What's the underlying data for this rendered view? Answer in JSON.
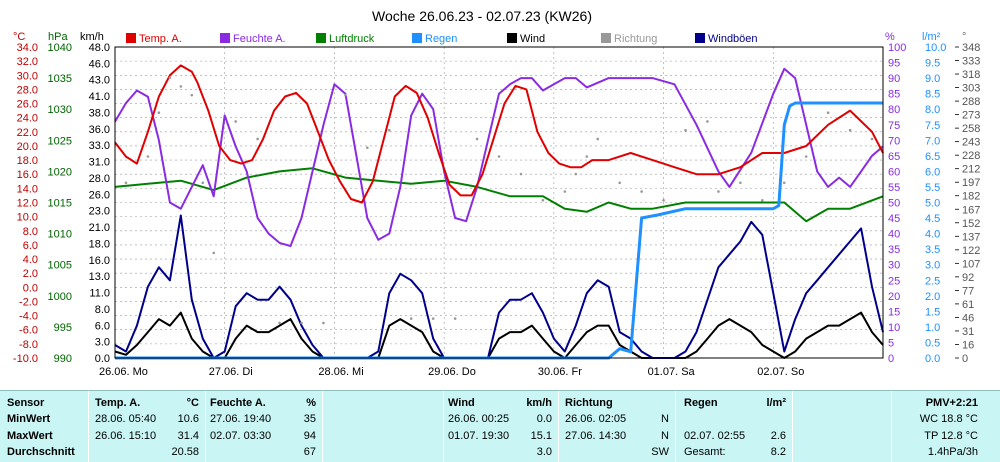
{
  "title": "Woche 26.06.23 - 02.07.23 (KW26)",
  "colors": {
    "temp": "#e00000",
    "humidity": "#8a2be2",
    "pressure": "#008000",
    "rain": "#1e90ff",
    "wind": "#000000",
    "direction": "#999999",
    "gust": "#00008b",
    "axis_temp": "#c00000",
    "table_bg": "#c9f5f5"
  },
  "axes": {
    "temp_unit": "°C",
    "pressure_unit": "hPa",
    "wind_unit": "km/h",
    "humidity_unit": "%",
    "rain_unit": "l/m²",
    "direction_unit": "°"
  },
  "legend": [
    {
      "label": "Temp. A.",
      "color": "#e00000"
    },
    {
      "label": "Feuchte A.",
      "color": "#8a2be2"
    },
    {
      "label": "Luftdruck",
      "color": "#008000"
    },
    {
      "label": "Regen",
      "color": "#1e90ff"
    },
    {
      "label": "Wind",
      "color": "#000000"
    },
    {
      "label": "Richtung",
      "color": "#999999"
    },
    {
      "label": "Windböen",
      "color": "#00008b"
    }
  ],
  "chart_data": {
    "type": "line",
    "title": "Woche 26.06.23 - 02.07.23 (KW26)",
    "x_labels": [
      "26.06. Mo",
      "27.06. Di",
      "28.06. Mi",
      "29.06. Do",
      "30.06. Fr",
      "01.07. Sa",
      "02.07. So"
    ],
    "x_range_days": [
      0,
      7
    ],
    "temp_ticks": [
      "34.0",
      "32.0",
      "30.0",
      "28.0",
      "26.0",
      "24.0",
      "22.0",
      "20.0",
      "18.0",
      "16.0",
      "14.0",
      "12.0",
      "10.0",
      "8.0",
      "6.0",
      "4.0",
      "2.0",
      "0.0",
      "-2.0",
      "-4.0",
      "-6.0",
      "-8.0",
      "-10.0"
    ],
    "temp_range": [
      -10,
      34
    ],
    "pressure_ticks": [
      "1040",
      "1035",
      "1030",
      "1025",
      "1020",
      "1015",
      "1010",
      "1005",
      "1000",
      "995",
      "990"
    ],
    "pressure_range": [
      990,
      1040
    ],
    "wind_ticks": [
      "48.0",
      "46.0",
      "43.0",
      "41.0",
      "38.0",
      "36.0",
      "33.0",
      "31.0",
      "28.0",
      "26.0",
      "23.0",
      "21.0",
      "18.0",
      "16.0",
      "13.0",
      "11.0",
      "8.0",
      "6.0",
      "3.0",
      "0.0"
    ],
    "wind_range": [
      0,
      48
    ],
    "humidity_ticks": [
      "100",
      "95",
      "90",
      "85",
      "80",
      "75",
      "70",
      "65",
      "60",
      "55",
      "50",
      "45",
      "40",
      "35",
      "30",
      "25",
      "20",
      "15",
      "10",
      "5",
      "0"
    ],
    "humidity_range": [
      0,
      100
    ],
    "rain_ticks": [
      "10.0",
      "9.5",
      "9.0",
      "8.5",
      "8.0",
      "7.5",
      "7.0",
      "6.5",
      "6.0",
      "5.5",
      "5.0",
      "4.5",
      "4.0",
      "3.5",
      "3.0",
      "2.5",
      "2.0",
      "1.5",
      "1.0",
      "0.5",
      "0.0"
    ],
    "rain_range": [
      0,
      10
    ],
    "direction_ticks": [
      "348",
      "333",
      "318",
      "303",
      "288",
      "273",
      "258",
      "243",
      "228",
      "212",
      "197",
      "182",
      "167",
      "152",
      "137",
      "122",
      "107",
      "92",
      "77",
      "61",
      "46",
      "31",
      "16",
      "0"
    ],
    "direction_range": [
      0,
      355
    ],
    "series": [
      {
        "name": "Temp. A.",
        "axis": "temp",
        "color": "#e00000",
        "x": [
          0,
          0.1,
          0.2,
          0.3,
          0.4,
          0.5,
          0.6,
          0.7,
          0.75,
          0.85,
          0.95,
          1.05,
          1.15,
          1.25,
          1.35,
          1.45,
          1.55,
          1.65,
          1.75,
          1.85,
          1.95,
          2.05,
          2.15,
          2.25,
          2.35,
          2.45,
          2.55,
          2.65,
          2.75,
          2.85,
          2.95,
          3.05,
          3.15,
          3.25,
          3.35,
          3.45,
          3.55,
          3.65,
          3.75,
          3.85,
          3.95,
          4.05,
          4.15,
          4.25,
          4.35,
          4.5,
          4.7,
          4.9,
          5.1,
          5.3,
          5.5,
          5.7,
          5.9,
          6.1,
          6.3,
          6.5,
          6.7,
          6.9,
          7.0
        ],
        "y": [
          20.5,
          18.5,
          17.5,
          22,
          27,
          30,
          31.4,
          30.5,
          29,
          25,
          20,
          18,
          17.5,
          18,
          21,
          25,
          27,
          27.5,
          26,
          22,
          18,
          15,
          12.5,
          12,
          15,
          21,
          27,
          28.5,
          27.5,
          24,
          19,
          14.5,
          13,
          13,
          16,
          21,
          26,
          28.5,
          28,
          22,
          19,
          17.5,
          17,
          17,
          18,
          18,
          19,
          18,
          17,
          16,
          16,
          17,
          19,
          19,
          20,
          23,
          25,
          22,
          19
        ]
      },
      {
        "name": "Feuchte A.",
        "axis": "humidity",
        "color": "#8a2be2",
        "x": [
          0,
          0.1,
          0.2,
          0.3,
          0.4,
          0.5,
          0.6,
          0.7,
          0.8,
          0.9,
          1.0,
          1.1,
          1.2,
          1.3,
          1.4,
          1.5,
          1.6,
          1.7,
          1.8,
          1.9,
          2.0,
          2.1,
          2.2,
          2.3,
          2.4,
          2.5,
          2.6,
          2.7,
          2.8,
          2.9,
          3.0,
          3.1,
          3.2,
          3.3,
          3.4,
          3.5,
          3.6,
          3.7,
          3.8,
          3.9,
          4.0,
          4.1,
          4.2,
          4.3,
          4.5,
          4.7,
          4.9,
          5.1,
          5.3,
          5.5,
          5.6,
          5.8,
          6.0,
          6.1,
          6.2,
          6.3,
          6.4,
          6.5,
          6.6,
          6.7,
          6.8,
          6.9,
          7.0
        ],
        "y": [
          76,
          82,
          86,
          84,
          70,
          50,
          48,
          55,
          62,
          52,
          78,
          68,
          60,
          45,
          40,
          37,
          36,
          45,
          60,
          75,
          88,
          85,
          65,
          45,
          38,
          40,
          55,
          78,
          85,
          80,
          60,
          45,
          44,
          55,
          70,
          85,
          88,
          90,
          90,
          86,
          88,
          90,
          90,
          87,
          90,
          90,
          90,
          88,
          75,
          60,
          55,
          66,
          85,
          93,
          90,
          75,
          60,
          55,
          58,
          55,
          60,
          65,
          68
        ]
      },
      {
        "name": "Luftdruck",
        "axis": "pressure",
        "color": "#008000",
        "x": [
          0,
          0.3,
          0.6,
          0.9,
          1.2,
          1.5,
          1.8,
          2.1,
          2.4,
          2.7,
          3.0,
          3.3,
          3.6,
          3.9,
          4.1,
          4.3,
          4.5,
          4.7,
          4.9,
          5.2,
          5.5,
          5.8,
          6.1,
          6.3,
          6.5,
          6.7,
          7.0
        ],
        "y": [
          1017.5,
          1018,
          1018.5,
          1017,
          1019,
          1020,
          1020.5,
          1019,
          1018.5,
          1018,
          1018.5,
          1017.5,
          1016,
          1016,
          1014,
          1013.5,
          1015,
          1014,
          1014,
          1015,
          1015,
          1015,
          1015,
          1012,
          1014,
          1014,
          1016
        ]
      },
      {
        "name": "Regen",
        "axis": "rain",
        "color": "#1e90ff",
        "x": [
          0,
          4.4,
          4.5,
          4.6,
          4.7,
          4.8,
          4.95,
          5.2,
          5.5,
          5.8,
          6.0,
          6.05,
          6.1,
          6.15,
          6.2,
          6.3,
          6.5,
          7.0
        ],
        "y": [
          0,
          0,
          0,
          0.3,
          0.2,
          4.5,
          4.6,
          4.8,
          4.8,
          4.8,
          4.8,
          4.9,
          7.5,
          8.1,
          8.2,
          8.2,
          8.2,
          8.2
        ]
      },
      {
        "name": "Wind",
        "axis": "wind",
        "color": "#000000",
        "x": [
          0,
          0.1,
          0.2,
          0.3,
          0.4,
          0.5,
          0.6,
          0.7,
          0.8,
          0.9,
          1.0,
          1.1,
          1.2,
          1.3,
          1.4,
          1.5,
          1.6,
          1.7,
          1.8,
          1.9,
          2.0,
          2.1,
          2.2,
          2.3,
          2.4,
          2.5,
          2.6,
          2.7,
          2.8,
          2.9,
          3.0,
          3.1,
          3.2,
          3.3,
          3.4,
          3.5,
          3.6,
          3.7,
          3.8,
          3.9,
          4.0,
          4.1,
          4.2,
          4.3,
          4.4,
          4.5,
          4.6,
          4.7,
          4.8,
          4.9,
          5.0,
          5.1,
          5.2,
          5.3,
          5.4,
          5.5,
          5.6,
          5.7,
          5.8,
          5.9,
          6.0,
          6.1,
          6.2,
          6.3,
          6.4,
          6.5,
          6.6,
          6.7,
          6.8,
          6.9,
          7.0
        ],
        "y": [
          1,
          0.5,
          2,
          4,
          6,
          5,
          7,
          3,
          1,
          0,
          0,
          3,
          5,
          4,
          4,
          5,
          6,
          3,
          1,
          0,
          0,
          0,
          0,
          0,
          0,
          5,
          6,
          5,
          4,
          1,
          0,
          0,
          0,
          0,
          0,
          3,
          4,
          4,
          5,
          3,
          1,
          0,
          2,
          4,
          5,
          5,
          2,
          1,
          0,
          0,
          0,
          0,
          0,
          1,
          3,
          5,
          6,
          5,
          4,
          2,
          1,
          0,
          1,
          3,
          4,
          5,
          5,
          6,
          7,
          4,
          2
        ]
      },
      {
        "name": "Windböen",
        "axis": "wind",
        "color": "#00008b",
        "x": [
          0,
          0.1,
          0.2,
          0.3,
          0.4,
          0.5,
          0.6,
          0.7,
          0.8,
          0.9,
          1.0,
          1.1,
          1.2,
          1.3,
          1.4,
          1.5,
          1.6,
          1.7,
          1.8,
          1.9,
          2.0,
          2.1,
          2.2,
          2.3,
          2.4,
          2.5,
          2.6,
          2.7,
          2.8,
          2.9,
          3.0,
          3.1,
          3.2,
          3.3,
          3.4,
          3.5,
          3.6,
          3.7,
          3.8,
          3.9,
          4.0,
          4.1,
          4.2,
          4.3,
          4.4,
          4.5,
          4.6,
          4.7,
          4.8,
          4.9,
          5.0,
          5.1,
          5.2,
          5.3,
          5.4,
          5.5,
          5.6,
          5.7,
          5.8,
          5.9,
          6.0,
          6.1,
          6.2,
          6.3,
          6.4,
          6.5,
          6.6,
          6.7,
          6.8,
          6.9,
          7.0
        ],
        "y": [
          2,
          1,
          5,
          11,
          14,
          12,
          22,
          9,
          3,
          0,
          1,
          8,
          10,
          9,
          9,
          11,
          9,
          5,
          2,
          0,
          0,
          0,
          0,
          0,
          1,
          10,
          13,
          12,
          10,
          3,
          0,
          0,
          0,
          0,
          0,
          7,
          9,
          9,
          10,
          7,
          3,
          1,
          5,
          10,
          12,
          11,
          4,
          3,
          1,
          0,
          0,
          0,
          1,
          4,
          9,
          14,
          16,
          18,
          21,
          19,
          10,
          1,
          6,
          10,
          12,
          14,
          16,
          18,
          20,
          11,
          4
        ]
      },
      {
        "name": "Richtung",
        "axis": "direction",
        "color": "#999999",
        "x": [
          0.1,
          0.3,
          0.4,
          0.5,
          0.6,
          0.7,
          0.8,
          0.9,
          1.1,
          1.3,
          1.5,
          1.7,
          1.9,
          2.1,
          2.3,
          2.5,
          2.7,
          2.9,
          3.1,
          3.3,
          3.5,
          3.7,
          3.9,
          4.1,
          4.2,
          4.3,
          4.4,
          4.6,
          4.8,
          5.0,
          5.2,
          5.4,
          5.5,
          5.7,
          5.9,
          6.1,
          6.3,
          6.5,
          6.7,
          6.9
        ],
        "y": [
          200,
          230,
          280,
          320,
          310,
          300,
          200,
          120,
          270,
          250,
          40,
          40,
          40,
          300,
          240,
          260,
          45,
          45,
          45,
          250,
          230,
          210,
          180,
          190,
          210,
          230,
          250,
          200,
          190,
          180,
          260,
          270,
          190,
          200,
          180,
          200,
          230,
          280,
          260,
          250
        ]
      }
    ]
  },
  "table": {
    "sensor": {
      "header": "Sensor",
      "rows": [
        "MinWert",
        "MaxWert",
        "Durchschnitt"
      ]
    },
    "temp": {
      "header": "Temp. A.",
      "unit": "°C",
      "min_date": "28.06.  05:40",
      "min": "10.6",
      "max_date": "26.06.  15:10",
      "max": "31.4",
      "avg": "20.58"
    },
    "humidity": {
      "header": "Feuchte A.",
      "unit": "%",
      "min_date": "27.06.  19:40",
      "min": "35",
      "max_date": "02.07.  03:30",
      "max": "94",
      "avg": "67"
    },
    "wind": {
      "header": "Wind",
      "unit": "km/h",
      "min_date": "26.06.  00:25",
      "min": "0.0",
      "max_date": "01.07.  19:30",
      "max": "15.1",
      "avg": "3.0"
    },
    "direction": {
      "header": "Richtung",
      "min_date": "26.06.  02:05",
      "min": "N",
      "max_date": "27.06.  14:30",
      "max": "N",
      "avg": "SW"
    },
    "rain": {
      "header": "Regen",
      "unit": "l/m²",
      "max_date": "02.07.  02:55",
      "max": "2.6",
      "total_label": "Gesamt:",
      "total": "8.2"
    },
    "extra": {
      "pmv": "PMV+2:21",
      "wc": "WC 18.8 °C",
      "tp": "TP 12.8 °C",
      "trend": "1.4hPa/3h"
    }
  }
}
